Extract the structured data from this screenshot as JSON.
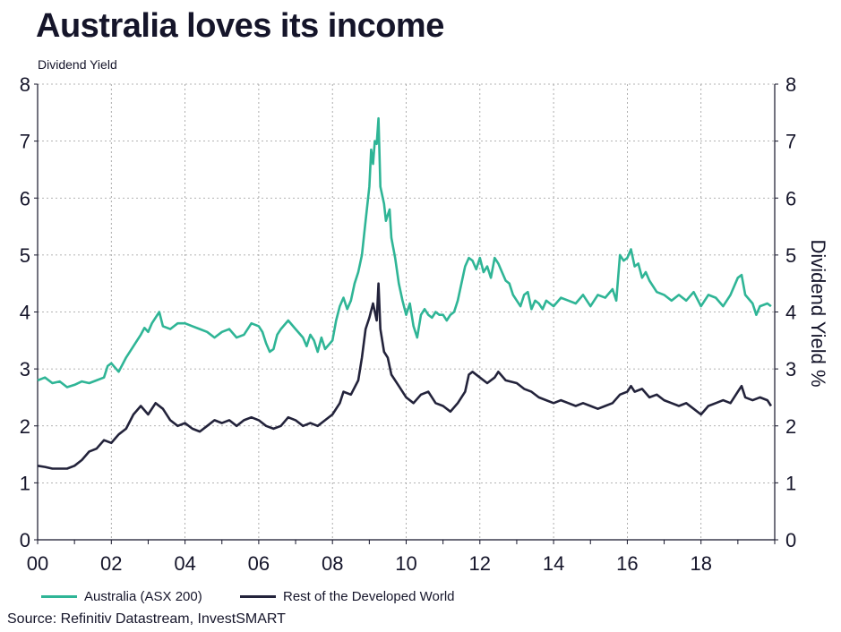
{
  "title": "Australia loves its income",
  "subtitle": "Dividend Yield",
  "source": "Source: Refinitiv Datastream, InvestSMART",
  "colors": {
    "australia": "#2fb596",
    "rest": "#23233b",
    "grid": "#9a9a9a",
    "axis": "#15152a"
  },
  "chart_data": {
    "type": "line",
    "title": "Australia loves its income",
    "subtitle": "Dividend Yield",
    "ylabel_right": "Dividend Yield %",
    "xlim": [
      2000,
      2020
    ],
    "ylim": [
      0,
      8
    ],
    "x_ticks": [
      2000,
      2002,
      2004,
      2006,
      2008,
      2010,
      2012,
      2014,
      2016,
      2018
    ],
    "x_tick_labels": [
      "00",
      "02",
      "04",
      "06",
      "08",
      "10",
      "12",
      "14",
      "16",
      "18"
    ],
    "y_ticks": [
      0,
      1,
      2,
      3,
      4,
      5,
      6,
      7,
      8
    ],
    "grid": true,
    "legend_position": "bottom-left",
    "series": [
      {
        "name": "Australia (ASX 200)",
        "color": "#2fb596",
        "points": [
          [
            2000.0,
            2.8
          ],
          [
            2000.2,
            2.85
          ],
          [
            2000.4,
            2.75
          ],
          [
            2000.6,
            2.78
          ],
          [
            2000.8,
            2.68
          ],
          [
            2001.0,
            2.72
          ],
          [
            2001.2,
            2.78
          ],
          [
            2001.4,
            2.75
          ],
          [
            2001.6,
            2.8
          ],
          [
            2001.8,
            2.85
          ],
          [
            2001.9,
            3.05
          ],
          [
            2002.0,
            3.1
          ],
          [
            2002.2,
            2.95
          ],
          [
            2002.4,
            3.2
          ],
          [
            2002.6,
            3.4
          ],
          [
            2002.8,
            3.6
          ],
          [
            2002.9,
            3.72
          ],
          [
            2003.0,
            3.65
          ],
          [
            2003.1,
            3.8
          ],
          [
            2003.3,
            4.0
          ],
          [
            2003.4,
            3.75
          ],
          [
            2003.6,
            3.7
          ],
          [
            2003.8,
            3.8
          ],
          [
            2004.0,
            3.8
          ],
          [
            2004.2,
            3.75
          ],
          [
            2004.4,
            3.7
          ],
          [
            2004.6,
            3.65
          ],
          [
            2004.8,
            3.55
          ],
          [
            2005.0,
            3.65
          ],
          [
            2005.2,
            3.7
          ],
          [
            2005.4,
            3.55
          ],
          [
            2005.6,
            3.6
          ],
          [
            2005.8,
            3.8
          ],
          [
            2006.0,
            3.75
          ],
          [
            2006.1,
            3.65
          ],
          [
            2006.2,
            3.45
          ],
          [
            2006.3,
            3.3
          ],
          [
            2006.4,
            3.35
          ],
          [
            2006.5,
            3.6
          ],
          [
            2006.6,
            3.7
          ],
          [
            2006.8,
            3.85
          ],
          [
            2007.0,
            3.7
          ],
          [
            2007.2,
            3.55
          ],
          [
            2007.3,
            3.4
          ],
          [
            2007.4,
            3.6
          ],
          [
            2007.5,
            3.5
          ],
          [
            2007.6,
            3.3
          ],
          [
            2007.7,
            3.55
          ],
          [
            2007.8,
            3.35
          ],
          [
            2008.0,
            3.5
          ],
          [
            2008.1,
            3.85
          ],
          [
            2008.2,
            4.1
          ],
          [
            2008.3,
            4.25
          ],
          [
            2008.4,
            4.05
          ],
          [
            2008.5,
            4.2
          ],
          [
            2008.6,
            4.5
          ],
          [
            2008.7,
            4.7
          ],
          [
            2008.8,
            5.0
          ],
          [
            2008.9,
            5.6
          ],
          [
            2009.0,
            6.2
          ],
          [
            2009.05,
            6.85
          ],
          [
            2009.1,
            6.6
          ],
          [
            2009.15,
            7.0
          ],
          [
            2009.2,
            6.95
          ],
          [
            2009.25,
            7.4
          ],
          [
            2009.3,
            6.2
          ],
          [
            2009.4,
            5.9
          ],
          [
            2009.45,
            5.6
          ],
          [
            2009.5,
            5.7
          ],
          [
            2009.55,
            5.8
          ],
          [
            2009.6,
            5.3
          ],
          [
            2009.7,
            4.95
          ],
          [
            2009.8,
            4.5
          ],
          [
            2009.9,
            4.2
          ],
          [
            2010.0,
            3.95
          ],
          [
            2010.1,
            4.15
          ],
          [
            2010.2,
            3.75
          ],
          [
            2010.3,
            3.55
          ],
          [
            2010.4,
            3.95
          ],
          [
            2010.5,
            4.05
          ],
          [
            2010.6,
            3.95
          ],
          [
            2010.7,
            3.9
          ],
          [
            2010.8,
            4.0
          ],
          [
            2010.9,
            3.95
          ],
          [
            2011.0,
            3.95
          ],
          [
            2011.1,
            3.85
          ],
          [
            2011.2,
            3.95
          ],
          [
            2011.3,
            4.0
          ],
          [
            2011.4,
            4.2
          ],
          [
            2011.5,
            4.5
          ],
          [
            2011.6,
            4.8
          ],
          [
            2011.7,
            4.95
          ],
          [
            2011.8,
            4.9
          ],
          [
            2011.9,
            4.75
          ],
          [
            2012.0,
            4.95
          ],
          [
            2012.1,
            4.7
          ],
          [
            2012.2,
            4.8
          ],
          [
            2012.3,
            4.6
          ],
          [
            2012.4,
            4.95
          ],
          [
            2012.5,
            4.85
          ],
          [
            2012.6,
            4.7
          ],
          [
            2012.7,
            4.55
          ],
          [
            2012.8,
            4.5
          ],
          [
            2012.9,
            4.3
          ],
          [
            2013.0,
            4.2
          ],
          [
            2013.1,
            4.1
          ],
          [
            2013.2,
            4.3
          ],
          [
            2013.3,
            4.35
          ],
          [
            2013.4,
            4.05
          ],
          [
            2013.5,
            4.2
          ],
          [
            2013.6,
            4.15
          ],
          [
            2013.7,
            4.05
          ],
          [
            2013.8,
            4.2
          ],
          [
            2013.9,
            4.15
          ],
          [
            2014.0,
            4.1
          ],
          [
            2014.2,
            4.25
          ],
          [
            2014.4,
            4.2
          ],
          [
            2014.6,
            4.15
          ],
          [
            2014.8,
            4.3
          ],
          [
            2015.0,
            4.1
          ],
          [
            2015.2,
            4.3
          ],
          [
            2015.4,
            4.25
          ],
          [
            2015.6,
            4.4
          ],
          [
            2015.7,
            4.2
          ],
          [
            2015.8,
            5.0
          ],
          [
            2015.9,
            4.9
          ],
          [
            2016.0,
            4.95
          ],
          [
            2016.1,
            5.1
          ],
          [
            2016.2,
            4.8
          ],
          [
            2016.3,
            4.85
          ],
          [
            2016.4,
            4.6
          ],
          [
            2016.5,
            4.7
          ],
          [
            2016.6,
            4.55
          ],
          [
            2016.8,
            4.35
          ],
          [
            2017.0,
            4.3
          ],
          [
            2017.2,
            4.2
          ],
          [
            2017.4,
            4.3
          ],
          [
            2017.6,
            4.2
          ],
          [
            2017.8,
            4.35
          ],
          [
            2018.0,
            4.1
          ],
          [
            2018.2,
            4.3
          ],
          [
            2018.4,
            4.25
          ],
          [
            2018.6,
            4.1
          ],
          [
            2018.8,
            4.3
          ],
          [
            2019.0,
            4.6
          ],
          [
            2019.1,
            4.65
          ],
          [
            2019.2,
            4.3
          ],
          [
            2019.4,
            4.15
          ],
          [
            2019.5,
            3.95
          ],
          [
            2019.6,
            4.1
          ],
          [
            2019.8,
            4.15
          ],
          [
            2019.9,
            4.1
          ]
        ]
      },
      {
        "name": "Rest of the Developed World",
        "color": "#23233b",
        "points": [
          [
            2000.0,
            1.3
          ],
          [
            2000.2,
            1.28
          ],
          [
            2000.4,
            1.25
          ],
          [
            2000.6,
            1.25
          ],
          [
            2000.8,
            1.25
          ],
          [
            2001.0,
            1.3
          ],
          [
            2001.2,
            1.4
          ],
          [
            2001.4,
            1.55
          ],
          [
            2001.6,
            1.6
          ],
          [
            2001.8,
            1.75
          ],
          [
            2002.0,
            1.7
          ],
          [
            2002.2,
            1.85
          ],
          [
            2002.4,
            1.95
          ],
          [
            2002.6,
            2.2
          ],
          [
            2002.8,
            2.35
          ],
          [
            2003.0,
            2.2
          ],
          [
            2003.2,
            2.4
          ],
          [
            2003.4,
            2.3
          ],
          [
            2003.6,
            2.1
          ],
          [
            2003.8,
            2.0
          ],
          [
            2004.0,
            2.05
          ],
          [
            2004.2,
            1.95
          ],
          [
            2004.4,
            1.9
          ],
          [
            2004.6,
            2.0
          ],
          [
            2004.8,
            2.1
          ],
          [
            2005.0,
            2.05
          ],
          [
            2005.2,
            2.1
          ],
          [
            2005.4,
            2.0
          ],
          [
            2005.6,
            2.1
          ],
          [
            2005.8,
            2.15
          ],
          [
            2006.0,
            2.1
          ],
          [
            2006.2,
            2.0
          ],
          [
            2006.4,
            1.95
          ],
          [
            2006.6,
            2.0
          ],
          [
            2006.8,
            2.15
          ],
          [
            2007.0,
            2.1
          ],
          [
            2007.2,
            2.0
          ],
          [
            2007.4,
            2.05
          ],
          [
            2007.6,
            2.0
          ],
          [
            2007.8,
            2.1
          ],
          [
            2008.0,
            2.2
          ],
          [
            2008.2,
            2.4
          ],
          [
            2008.3,
            2.6
          ],
          [
            2008.5,
            2.55
          ],
          [
            2008.7,
            2.8
          ],
          [
            2008.8,
            3.2
          ],
          [
            2008.9,
            3.7
          ],
          [
            2009.0,
            3.9
          ],
          [
            2009.1,
            4.15
          ],
          [
            2009.2,
            3.85
          ],
          [
            2009.25,
            4.5
          ],
          [
            2009.3,
            3.7
          ],
          [
            2009.4,
            3.3
          ],
          [
            2009.5,
            3.2
          ],
          [
            2009.6,
            2.9
          ],
          [
            2009.8,
            2.7
          ],
          [
            2010.0,
            2.5
          ],
          [
            2010.2,
            2.4
          ],
          [
            2010.4,
            2.55
          ],
          [
            2010.6,
            2.6
          ],
          [
            2010.8,
            2.4
          ],
          [
            2011.0,
            2.35
          ],
          [
            2011.2,
            2.25
          ],
          [
            2011.4,
            2.4
          ],
          [
            2011.6,
            2.6
          ],
          [
            2011.7,
            2.9
          ],
          [
            2011.8,
            2.95
          ],
          [
            2012.0,
            2.85
          ],
          [
            2012.2,
            2.75
          ],
          [
            2012.4,
            2.85
          ],
          [
            2012.5,
            2.95
          ],
          [
            2012.7,
            2.8
          ],
          [
            2013.0,
            2.75
          ],
          [
            2013.2,
            2.65
          ],
          [
            2013.4,
            2.6
          ],
          [
            2013.6,
            2.5
          ],
          [
            2013.8,
            2.45
          ],
          [
            2014.0,
            2.4
          ],
          [
            2014.2,
            2.45
          ],
          [
            2014.4,
            2.4
          ],
          [
            2014.6,
            2.35
          ],
          [
            2014.8,
            2.4
          ],
          [
            2015.0,
            2.35
          ],
          [
            2015.2,
            2.3
          ],
          [
            2015.4,
            2.35
          ],
          [
            2015.6,
            2.4
          ],
          [
            2015.8,
            2.55
          ],
          [
            2016.0,
            2.6
          ],
          [
            2016.1,
            2.7
          ],
          [
            2016.2,
            2.6
          ],
          [
            2016.4,
            2.65
          ],
          [
            2016.6,
            2.5
          ],
          [
            2016.8,
            2.55
          ],
          [
            2017.0,
            2.45
          ],
          [
            2017.2,
            2.4
          ],
          [
            2017.4,
            2.35
          ],
          [
            2017.6,
            2.4
          ],
          [
            2017.8,
            2.3
          ],
          [
            2018.0,
            2.2
          ],
          [
            2018.2,
            2.35
          ],
          [
            2018.4,
            2.4
          ],
          [
            2018.6,
            2.45
          ],
          [
            2018.8,
            2.4
          ],
          [
            2019.0,
            2.6
          ],
          [
            2019.1,
            2.7
          ],
          [
            2019.2,
            2.5
          ],
          [
            2019.4,
            2.45
          ],
          [
            2019.6,
            2.5
          ],
          [
            2019.8,
            2.45
          ],
          [
            2019.9,
            2.35
          ]
        ]
      }
    ]
  },
  "legend": {
    "australia_label": "Australia (ASX 200)",
    "rest_label": "Rest of the Developed World"
  }
}
